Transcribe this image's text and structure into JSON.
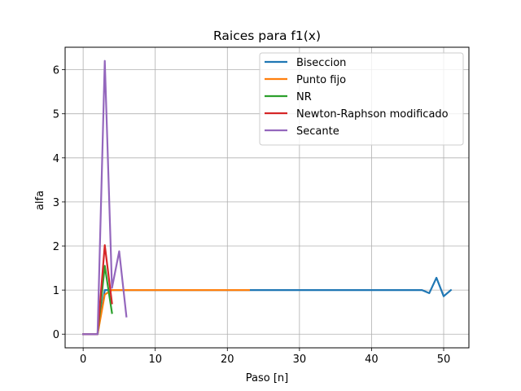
{
  "chart_data": {
    "type": "line",
    "title": "Raices para f1(x)",
    "xlabel": "Paso [n]",
    "ylabel": "alfa",
    "xlim": [
      -2.5,
      53.5
    ],
    "ylim": [
      -0.31,
      6.51
    ],
    "xticks": [
      0,
      10,
      20,
      30,
      40,
      50
    ],
    "yticks": [
      0,
      1,
      2,
      3,
      4,
      5,
      6
    ],
    "grid": true,
    "legend_position": "top-right",
    "series": [
      {
        "name": "Biseccion",
        "color": "#1f77b4",
        "x": [
          0,
          1,
          2,
          3,
          4,
          5,
          6,
          7,
          8,
          9,
          10,
          11,
          12,
          13,
          14,
          15,
          16,
          17,
          18,
          19,
          20,
          21,
          22,
          23,
          24,
          25,
          26,
          27,
          28,
          29,
          30,
          31,
          32,
          33,
          34,
          35,
          36,
          37,
          38,
          39,
          40,
          41,
          42,
          43,
          44,
          45,
          46,
          47,
          48,
          49,
          50,
          51
        ],
        "y": [
          0,
          0,
          0,
          1,
          1,
          1,
          1,
          1,
          1,
          1,
          1,
          1,
          1,
          1,
          1,
          1,
          1,
          1,
          1,
          1,
          1,
          1,
          1,
          1,
          1,
          1,
          1,
          1,
          1,
          1,
          1,
          1,
          1,
          1,
          1,
          1,
          1,
          1,
          1,
          1,
          1,
          1,
          1,
          1,
          1,
          1,
          1,
          1,
          0.93,
          1.28,
          0.86,
          1.0
        ]
      },
      {
        "name": "Punto fijo",
        "color": "#ff7f0e",
        "x": [
          0,
          1,
          2,
          3,
          4,
          5,
          6,
          7,
          8,
          9,
          10,
          11,
          12,
          13,
          14,
          15,
          16,
          17,
          18,
          19,
          20,
          21,
          22,
          23
        ],
        "y": [
          0,
          0,
          0,
          0.9,
          1,
          1,
          1,
          1,
          1,
          1,
          1,
          1,
          1,
          1,
          1,
          1,
          1,
          1,
          1,
          1,
          1,
          1,
          1,
          1
        ]
      },
      {
        "name": "NR",
        "color": "#2ca02c",
        "x": [
          0,
          1,
          2,
          3,
          4
        ],
        "y": [
          0,
          0,
          0,
          1.55,
          0.48
        ]
      },
      {
        "name": "Newton-Raphson modificado",
        "color": "#d62728",
        "x": [
          0,
          1,
          2,
          3,
          4
        ],
        "y": [
          0,
          0,
          0,
          2.02,
          0.7
        ]
      },
      {
        "name": "Secante",
        "color": "#9467bd",
        "x": [
          0,
          1,
          2,
          3,
          4,
          5,
          6
        ],
        "y": [
          0,
          0,
          0,
          6.2,
          1.05,
          1.88,
          0.4
        ]
      }
    ]
  }
}
